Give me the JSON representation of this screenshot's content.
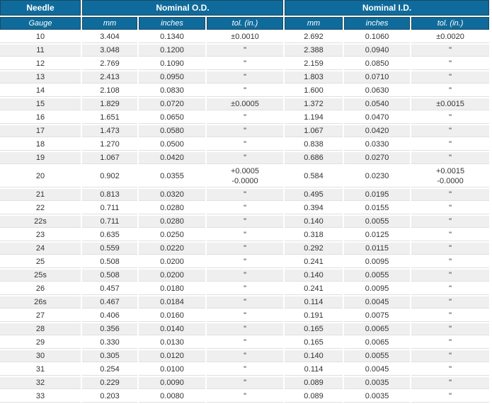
{
  "table": {
    "header_groups": [
      {
        "label": "Needle",
        "colspan": 1
      },
      {
        "label": "Nominal O.D.",
        "colspan": 3
      },
      {
        "label": "Nominal I.D.",
        "colspan": 3
      }
    ],
    "columns": [
      "Gauge",
      "mm",
      "inches",
      "tol. (in.)",
      "mm",
      "inches",
      "tol. (in.)"
    ],
    "rows": [
      [
        "10",
        "3.404",
        "0.1340",
        "±0.0010",
        "2.692",
        "0.1060",
        "±0.0020"
      ],
      [
        "11",
        "3.048",
        "0.1200",
        "\"",
        "2.388",
        "0.0940",
        "\""
      ],
      [
        "12",
        "2.769",
        "0.1090",
        "\"",
        "2.159",
        "0.0850",
        "\""
      ],
      [
        "13",
        "2.413",
        "0.0950",
        "\"",
        "1.803",
        "0.0710",
        "\""
      ],
      [
        "14",
        "2.108",
        "0.0830",
        "\"",
        "1.600",
        "0.0630",
        "\""
      ],
      [
        "15",
        "1.829",
        "0.0720",
        "±0.0005",
        "1.372",
        "0.0540",
        "±0.0015"
      ],
      [
        "16",
        "1.651",
        "0.0650",
        "\"",
        "1.194",
        "0.0470",
        "\""
      ],
      [
        "17",
        "1.473",
        "0.0580",
        "\"",
        "1.067",
        "0.0420",
        "\""
      ],
      [
        "18",
        "1.270",
        "0.0500",
        "\"",
        "0.838",
        "0.0330",
        "\""
      ],
      [
        "19",
        "1.067",
        "0.0420",
        "\"",
        "0.686",
        "0.0270",
        "\""
      ],
      [
        "20",
        "0.902",
        "0.0355",
        "+0.0005\n-0.0000",
        "0.584",
        "0.0230",
        "+0.0015\n-0.0000"
      ],
      [
        "21",
        "0.813",
        "0.0320",
        "\"",
        "0.495",
        "0.0195",
        "\""
      ],
      [
        "22",
        "0.711",
        "0.0280",
        "\"",
        "0.394",
        "0.0155",
        "\""
      ],
      [
        "22s",
        "0.711",
        "0.0280",
        "\"",
        "0.140",
        "0.0055",
        "\""
      ],
      [
        "23",
        "0.635",
        "0.0250",
        "\"",
        "0.318",
        "0.0125",
        "\""
      ],
      [
        "24",
        "0.559",
        "0.0220",
        "\"",
        "0.292",
        "0.0115",
        "\""
      ],
      [
        "25",
        "0.508",
        "0.0200",
        "\"",
        "0.241",
        "0.0095",
        "\""
      ],
      [
        "25s",
        "0.508",
        "0.0200",
        "\"",
        "0.140",
        "0.0055",
        "\""
      ],
      [
        "26",
        "0.457",
        "0.0180",
        "\"",
        "0.241",
        "0.0095",
        "\""
      ],
      [
        "26s",
        "0.467",
        "0.0184",
        "\"",
        "0.114",
        "0.0045",
        "\""
      ],
      [
        "27",
        "0.406",
        "0.0160",
        "\"",
        "0.191",
        "0.0075",
        "\""
      ],
      [
        "28",
        "0.356",
        "0.0140",
        "\"",
        "0.165",
        "0.0065",
        "\""
      ],
      [
        "29",
        "0.330",
        "0.0130",
        "\"",
        "0.165",
        "0.0065",
        "\""
      ],
      [
        "30",
        "0.305",
        "0.0120",
        "\"",
        "0.140",
        "0.0055",
        "\""
      ],
      [
        "31",
        "0.254",
        "0.0100",
        "\"",
        "0.114",
        "0.0045",
        "\""
      ],
      [
        "32",
        "0.229",
        "0.0090",
        "\"",
        "0.089",
        "0.0035",
        "\""
      ],
      [
        "33",
        "0.203",
        "0.0080",
        "\"",
        "0.089",
        "0.0035",
        "\""
      ]
    ]
  },
  "colors": {
    "header_bg": "#0f6b9b",
    "header_border": "#1a4a64",
    "header_text": "#ffffff",
    "row_alt_bg": "#efefef",
    "row_divider": "#e0e0e0",
    "body_text": "#333333"
  }
}
